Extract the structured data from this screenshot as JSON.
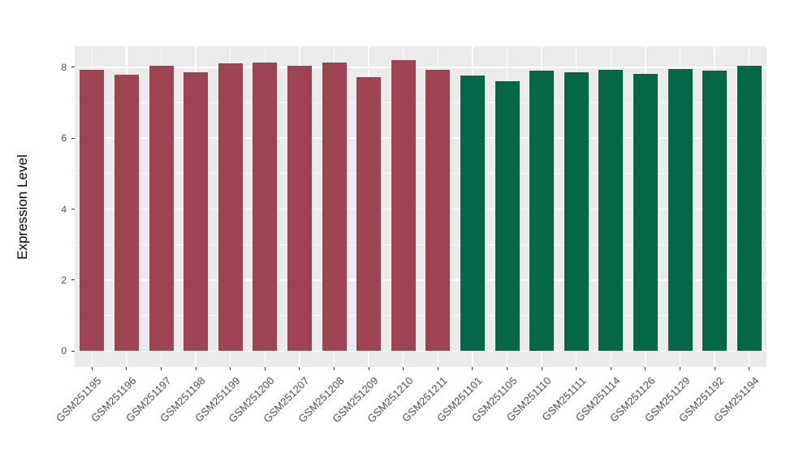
{
  "figure": {
    "background": "#FFFFFF",
    "panel_background": "#EBEBEB",
    "grid_color": "#FFFFFF",
    "axis_text_color": "#4D4D4D",
    "axis_title_color": "#000000",
    "tick_mark_color": "#333333"
  },
  "chart_data": {
    "type": "bar",
    "title": "",
    "xlabel": "",
    "ylabel": "Expression Level",
    "legend_position": "none",
    "grid": true,
    "ylim": [
      -0.45,
      8.59
    ],
    "yticks": [
      0,
      2,
      4,
      6,
      8
    ],
    "yticks_minor": [
      1,
      3,
      5,
      7
    ],
    "categories": [
      "GSM251195",
      "GSM251196",
      "GSM251197",
      "GSM251198",
      "GSM251199",
      "GSM251200",
      "GSM251207",
      "GSM251208",
      "GSM251209",
      "GSM251210",
      "GSM251211",
      "GSM251101",
      "GSM251105",
      "GSM251110",
      "GSM251111",
      "GSM251114",
      "GSM251126",
      "GSM251129",
      "GSM251192",
      "GSM251194"
    ],
    "values": [
      7.92,
      7.8,
      8.05,
      7.85,
      8.11,
      8.13,
      8.03,
      8.13,
      7.73,
      8.2,
      7.92,
      7.77,
      7.6,
      7.91,
      7.86,
      7.92,
      7.81,
      7.94,
      7.9,
      8.03
    ],
    "groups": [
      "red",
      "red",
      "red",
      "red",
      "red",
      "red",
      "red",
      "red",
      "red",
      "red",
      "red",
      "green",
      "green",
      "green",
      "green",
      "green",
      "green",
      "green",
      "green",
      "green"
    ],
    "group_colors": {
      "red": "#9D4351",
      "green": "#046748"
    }
  }
}
